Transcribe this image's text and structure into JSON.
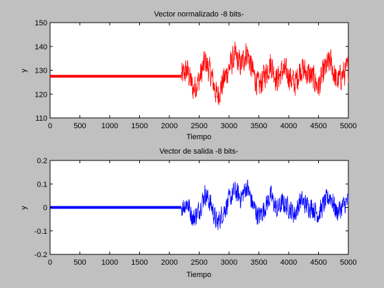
{
  "chart_data": [
    {
      "type": "line",
      "title": "Vector normalizado -8 bits-",
      "xlabel": "Tiempo",
      "ylabel": "y",
      "xlim": [
        0,
        5000
      ],
      "ylim": [
        110,
        150
      ],
      "xticks": [
        "0",
        "500",
        "1000",
        "1500",
        "2000",
        "2500",
        "3000",
        "3500",
        "4000",
        "4500",
        "5000"
      ],
      "yticks": [
        "110",
        "120",
        "130",
        "140",
        "150"
      ],
      "grid": false,
      "series": [
        {
          "color": "#ff0000",
          "flat_segment": {
            "x": [
              0,
              2200
            ],
            "y": 127.5
          },
          "signal_segment": {
            "x_start": 2200,
            "x_end": 5000,
            "envelope_points": [
              {
                "x": 2200,
                "y": 127.5
              },
              {
                "x": 2300,
                "y": 130
              },
              {
                "x": 2400,
                "y": 122
              },
              {
                "x": 2500,
                "y": 126
              },
              {
                "x": 2600,
                "y": 134
              },
              {
                "x": 2700,
                "y": 128
              },
              {
                "x": 2800,
                "y": 119
              },
              {
                "x": 2900,
                "y": 125
              },
              {
                "x": 3000,
                "y": 131
              },
              {
                "x": 3100,
                "y": 136
              },
              {
                "x": 3200,
                "y": 132
              },
              {
                "x": 3300,
                "y": 138
              },
              {
                "x": 3400,
                "y": 129
              },
              {
                "x": 3500,
                "y": 123
              },
              {
                "x": 3600,
                "y": 128
              },
              {
                "x": 3700,
                "y": 133
              },
              {
                "x": 3800,
                "y": 126
              },
              {
                "x": 3900,
                "y": 130
              },
              {
                "x": 4000,
                "y": 128
              },
              {
                "x": 4100,
                "y": 124
              },
              {
                "x": 4200,
                "y": 131
              },
              {
                "x": 4300,
                "y": 129
              },
              {
                "x": 4400,
                "y": 127
              },
              {
                "x": 4500,
                "y": 123
              },
              {
                "x": 4600,
                "y": 130
              },
              {
                "x": 4700,
                "y": 134
              },
              {
                "x": 4800,
                "y": 125
              },
              {
                "x": 4900,
                "y": 128
              },
              {
                "x": 5000,
                "y": 131
              }
            ],
            "noise_amplitude": 7
          }
        }
      ]
    },
    {
      "type": "line",
      "title": "Vector de salida -8 bits-",
      "xlabel": "Tiempo",
      "ylabel": "y",
      "xlim": [
        0,
        5000
      ],
      "ylim": [
        -0.2,
        0.2
      ],
      "xticks": [
        "0",
        "500",
        "1000",
        "1500",
        "2000",
        "2500",
        "3000",
        "3500",
        "4000",
        "4500",
        "5000"
      ],
      "yticks": [
        "-0.2",
        "-0.1",
        "0",
        "0.1",
        "0.2"
      ],
      "grid": false,
      "series": [
        {
          "color": "#0000ff",
          "flat_segment": {
            "x": [
              0,
              2200
            ],
            "y": 0
          },
          "signal_segment": {
            "x_start": 2200,
            "x_end": 5000,
            "envelope_points": [
              {
                "x": 2200,
                "y": 0
              },
              {
                "x": 2300,
                "y": 0.02
              },
              {
                "x": 2400,
                "y": -0.05
              },
              {
                "x": 2500,
                "y": -0.01
              },
              {
                "x": 2600,
                "y": 0.06
              },
              {
                "x": 2700,
                "y": 0.01
              },
              {
                "x": 2800,
                "y": -0.07
              },
              {
                "x": 2900,
                "y": -0.02
              },
              {
                "x": 3000,
                "y": 0.03
              },
              {
                "x": 3100,
                "y": 0.07
              },
              {
                "x": 3200,
                "y": 0.04
              },
              {
                "x": 3300,
                "y": 0.09
              },
              {
                "x": 3400,
                "y": 0.01
              },
              {
                "x": 3500,
                "y": -0.04
              },
              {
                "x": 3600,
                "y": 0.0
              },
              {
                "x": 3700,
                "y": 0.05
              },
              {
                "x": 3800,
                "y": -0.01
              },
              {
                "x": 3900,
                "y": 0.02
              },
              {
                "x": 4000,
                "y": 0.0
              },
              {
                "x": 4100,
                "y": -0.03
              },
              {
                "x": 4200,
                "y": 0.03
              },
              {
                "x": 4300,
                "y": 0.01
              },
              {
                "x": 4400,
                "y": 0.0
              },
              {
                "x": 4500,
                "y": -0.03
              },
              {
                "x": 4600,
                "y": 0.02
              },
              {
                "x": 4700,
                "y": 0.05
              },
              {
                "x": 4800,
                "y": -0.02
              },
              {
                "x": 4900,
                "y": 0.0
              },
              {
                "x": 5000,
                "y": 0.03
              }
            ],
            "noise_amplitude": 0.055
          }
        }
      ]
    }
  ]
}
